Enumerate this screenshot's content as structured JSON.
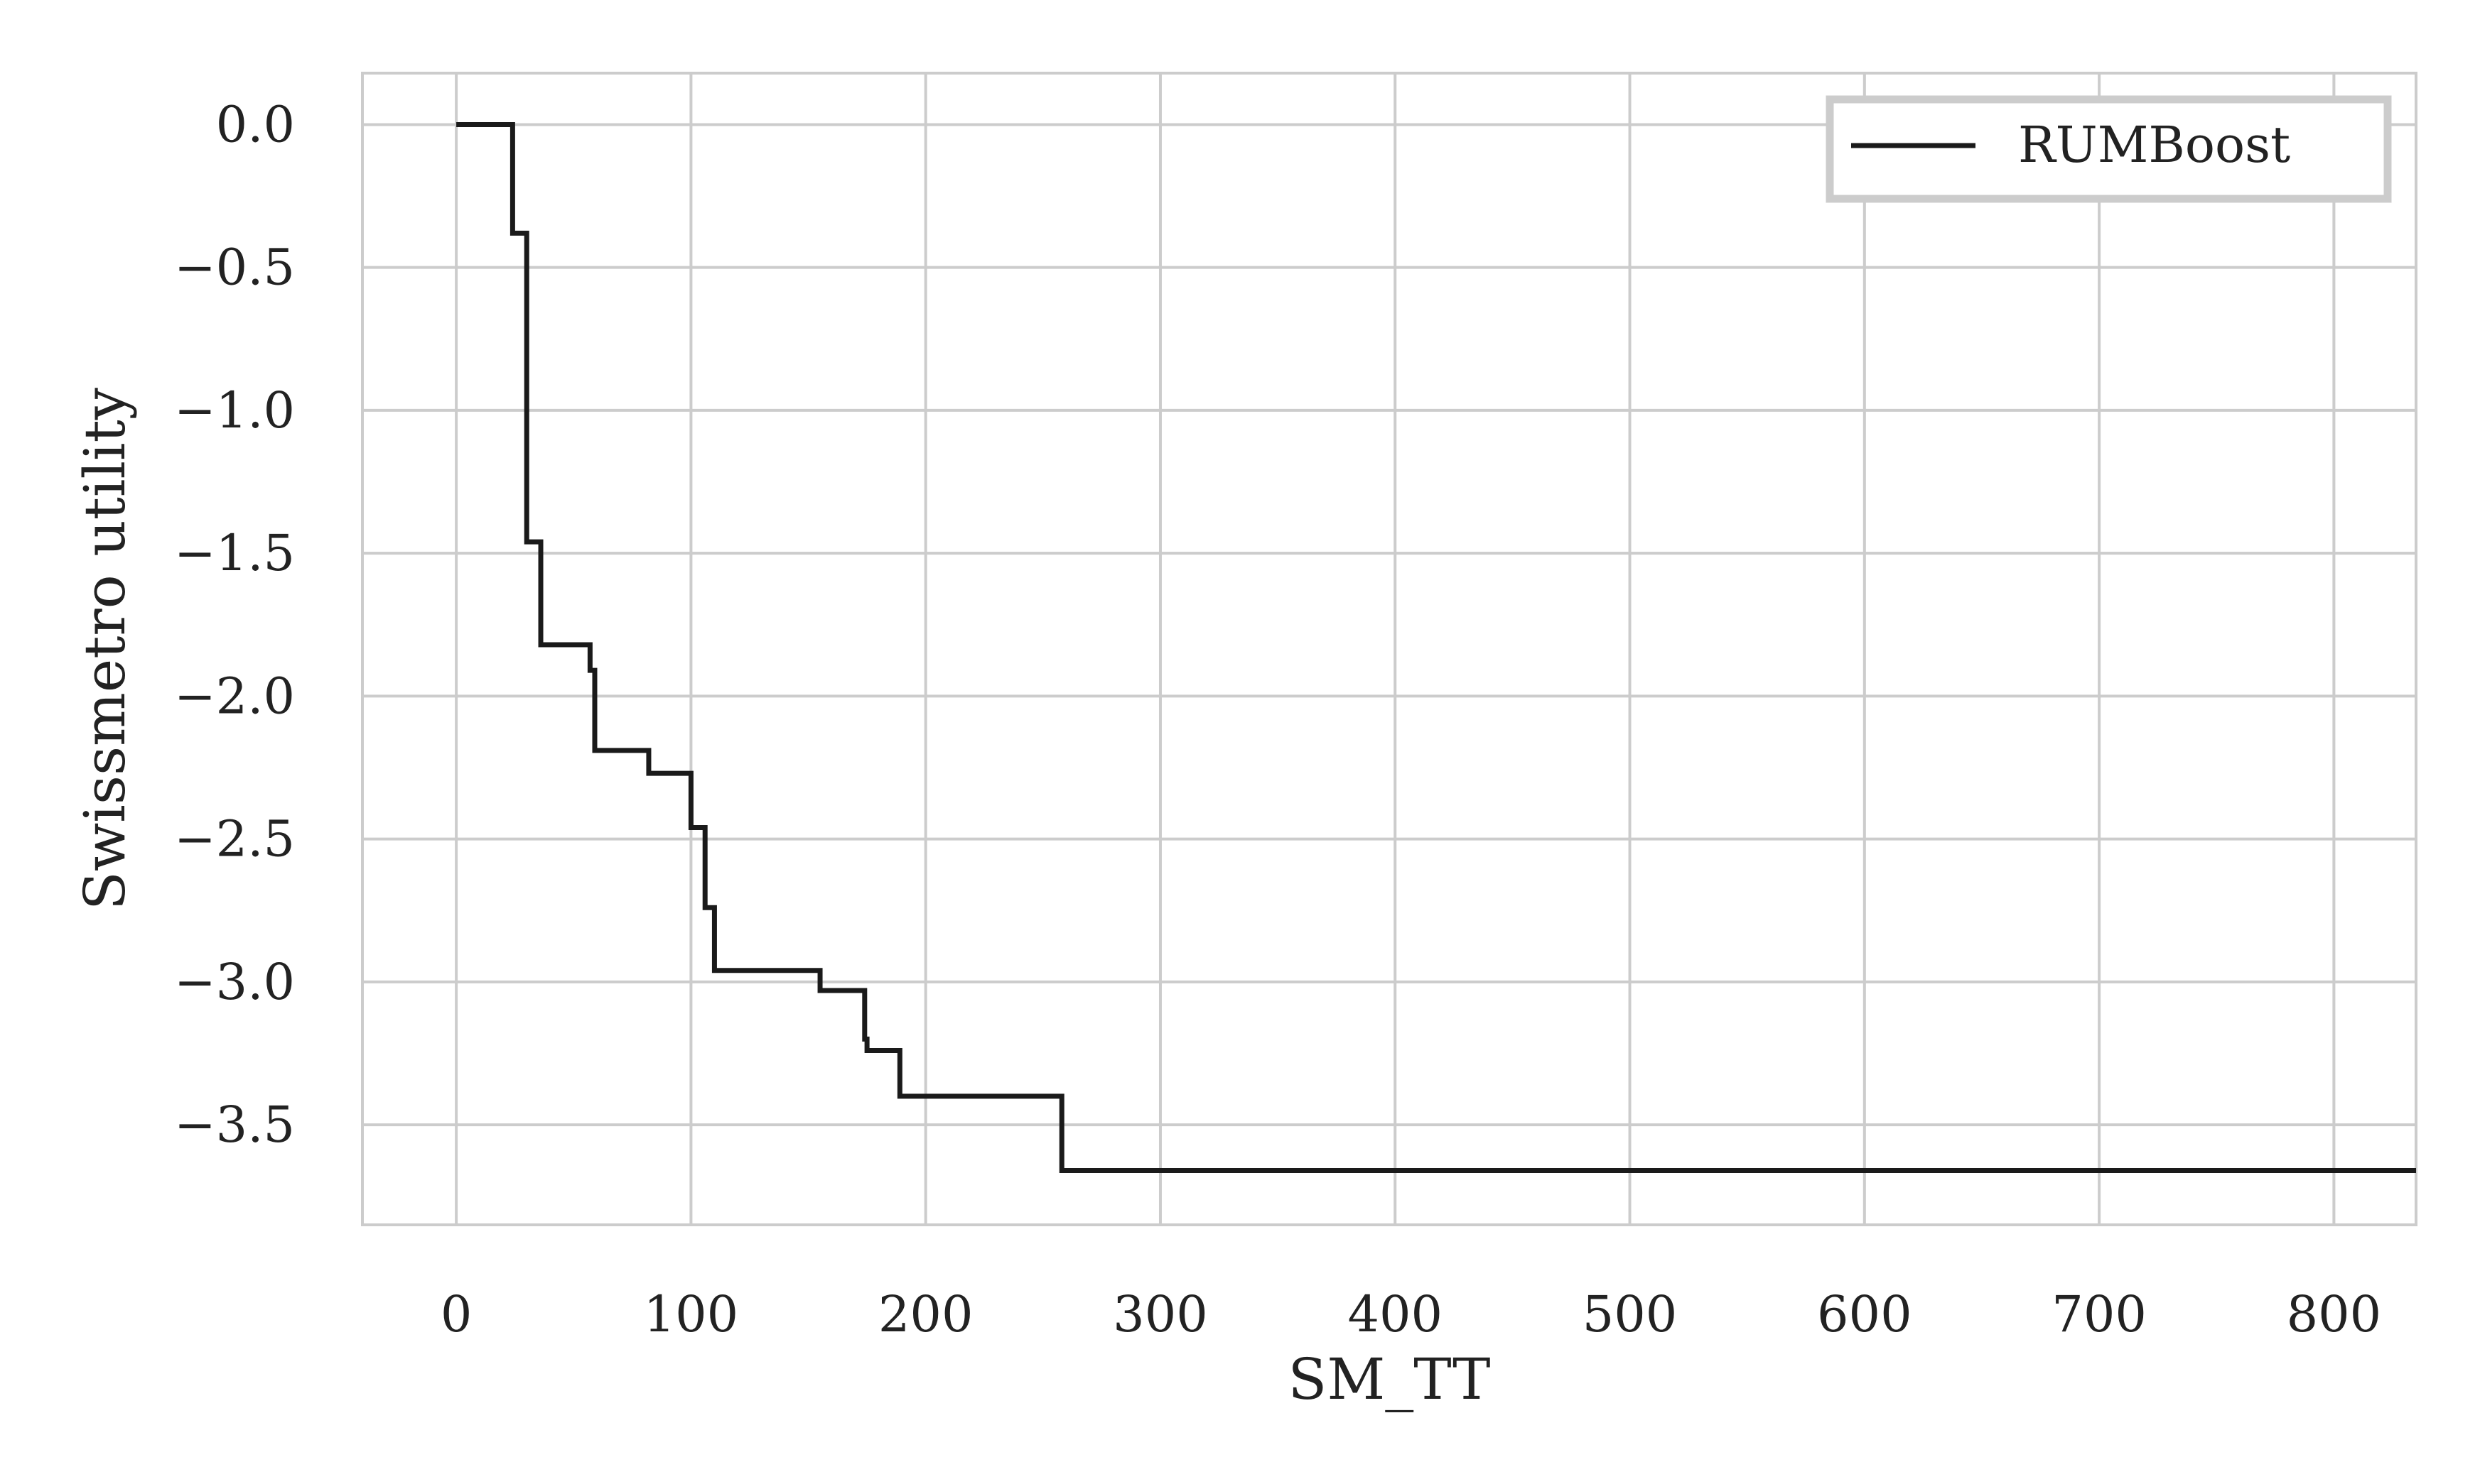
{
  "chart_data": {
    "type": "line",
    "step": true,
    "xlabel": "SM_TT",
    "ylabel": "Swissmetro utility",
    "xlim": [
      -40,
      835
    ],
    "ylim": [
      -3.85,
      0.18
    ],
    "xticks": [
      0,
      100,
      200,
      300,
      400,
      500,
      600,
      700,
      800
    ],
    "xtick_labels": [
      "0",
      "100",
      "200",
      "300",
      "400",
      "500",
      "600",
      "700",
      "800"
    ],
    "yticks": [
      0.0,
      -0.5,
      -1.0,
      -1.5,
      -2.0,
      -2.5,
      -3.0,
      -3.5
    ],
    "ytick_labels": [
      "0.0",
      "−0.5",
      "−1.0",
      "−1.5",
      "−2.0",
      "−2.5",
      "−3.0",
      "−3.5"
    ],
    "grid": true,
    "legend_position": "top-right",
    "colors": {
      "line": "#1a1a1a",
      "grid": "#cccccc",
      "frame": "#cccccc",
      "legend_border": "#cccccc"
    },
    "series": [
      {
        "name": "RUMBoost",
        "x": [
          0,
          24,
          30,
          33,
          36,
          57,
          59,
          82,
          100,
          106,
          110,
          155,
          174,
          175,
          189,
          258,
          835
        ],
        "y": [
          0.0,
          -0.38,
          -1.46,
          -1.46,
          -1.82,
          -1.91,
          -2.19,
          -2.27,
          -2.46,
          -2.74,
          -2.96,
          -3.03,
          -3.2,
          -3.24,
          -3.4,
          -3.66,
          -3.66
        ]
      }
    ]
  }
}
